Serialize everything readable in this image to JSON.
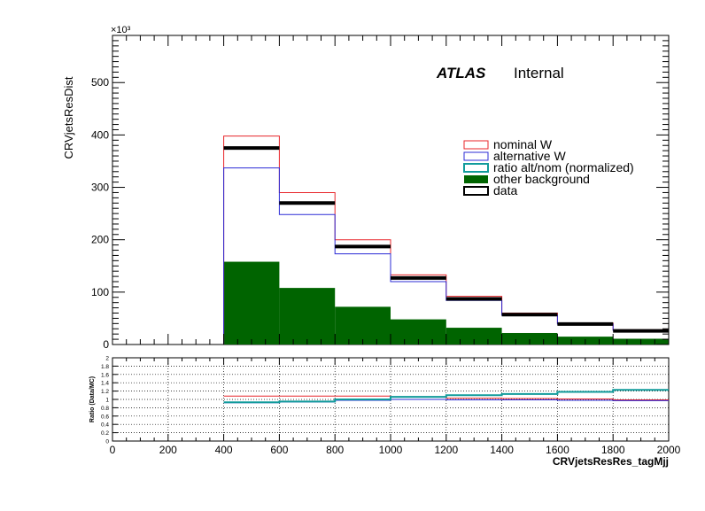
{
  "chart_data": [
    {
      "type": "histogram",
      "ylabel": "CRVjetsResDist",
      "y_multiplier": "×10³",
      "ylim": [
        0,
        590
      ],
      "y_ticks": [
        0,
        100,
        200,
        300,
        400,
        500
      ],
      "xlim": [
        0,
        2000
      ],
      "bins": [
        0,
        200,
        400,
        600,
        800,
        1000,
        1200,
        1400,
        1600,
        1800,
        2000
      ],
      "annotation": {
        "atlas": "ATLAS",
        "label": "Internal"
      },
      "legend": [
        {
          "key": "nominal",
          "label": "nominal W",
          "style": "box",
          "color": "#e8252a"
        },
        {
          "key": "alternative",
          "label": "alternative W",
          "style": "box",
          "color": "#2b2bd6"
        },
        {
          "key": "ratio",
          "label": "ratio alt/nom (normalized)",
          "style": "box-thick",
          "color": "#119b9b"
        },
        {
          "key": "other",
          "label": "other background",
          "style": "fill",
          "color": "#006400"
        },
        {
          "key": "data",
          "label": "data",
          "style": "box-thick",
          "color": "#000000"
        }
      ],
      "series": [
        {
          "key": "other",
          "name": "other background",
          "values": [
            0,
            0,
            158,
            108,
            72,
            48,
            32,
            22,
            15,
            11
          ]
        },
        {
          "key": "nominal",
          "name": "nominal W",
          "values": [
            0,
            0,
            398,
            290,
            200,
            133,
            92,
            60,
            41,
            28
          ]
        },
        {
          "key": "alternative",
          "name": "alternative W",
          "values": [
            0,
            0,
            337,
            248,
            173,
            120,
            84,
            56,
            39,
            27
          ]
        },
        {
          "key": "data",
          "name": "data",
          "values": [
            0,
            0,
            375,
            270,
            187,
            127,
            87,
            57,
            39,
            26
          ]
        }
      ]
    },
    {
      "type": "ratio",
      "ylabel": "Ratio (Data/MC)",
      "ylim": [
        0,
        2
      ],
      "y_ticks": [
        0,
        0.2,
        0.4,
        0.6,
        0.8,
        1,
        1.2,
        1.4,
        1.6,
        1.8,
        2
      ],
      "xlabel": "CRVjetsResRes_tagMjj",
      "x_ticks": [
        0,
        200,
        400,
        600,
        800,
        1000,
        1200,
        1400,
        1600,
        1800,
        2000
      ],
      "grid": true,
      "series": [
        {
          "key": "nominal",
          "name": "nominal W",
          "values": [
            null,
            null,
            1.08,
            1.08,
            1.08,
            1.06,
            1.03,
            1.02,
            1.01,
            0.99
          ]
        },
        {
          "key": "alternative",
          "name": "alternative W",
          "values": [
            null,
            null,
            0.92,
            0.94,
            0.98,
            1.0,
            0.99,
            0.99,
            0.98,
            0.97
          ]
        },
        {
          "key": "ratio",
          "name": "ratio alt/nom (normalized)",
          "values": [
            null,
            null,
            0.93,
            0.95,
            1.0,
            1.06,
            1.1,
            1.13,
            1.18,
            1.23
          ]
        }
      ]
    }
  ]
}
